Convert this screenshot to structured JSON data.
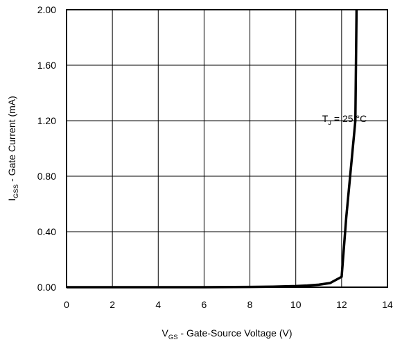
{
  "chart_data": {
    "type": "line",
    "xlabel": {
      "main": "V",
      "sub": "GS",
      "rest": " - Gate-Source Voltage (V)"
    },
    "ylabel": {
      "main": "I",
      "sub": "GSS",
      "rest": " - Gate Current (mA)"
    },
    "annotation": {
      "main": "T",
      "sub": "J",
      "rest": " = 25 °C",
      "x": 11.15,
      "y": 1.2
    },
    "xlim": [
      0,
      14
    ],
    "ylim": [
      0,
      2.0
    ],
    "x_ticks": [
      0,
      2,
      4,
      6,
      8,
      10,
      12,
      14
    ],
    "x_tick_labels": [
      "0",
      "2",
      "4",
      "6",
      "8",
      "10",
      "12",
      "14"
    ],
    "y_ticks": [
      0,
      0.4,
      0.8,
      1.2,
      1.6,
      2.0
    ],
    "y_tick_labels": [
      "0.00",
      "0.40",
      "0.80",
      "1.20",
      "1.60",
      "2.00"
    ],
    "grid": true,
    "series": [
      {
        "x": [
          0,
          2,
          4,
          6,
          8,
          9,
          10,
          10.5,
          11,
          11.5,
          12,
          12.2,
          12.4,
          12.6,
          12.65
        ],
        "y": [
          0.0,
          0.0,
          0.0,
          0.0,
          0.002,
          0.004,
          0.008,
          0.012,
          0.018,
          0.03,
          0.075,
          0.5,
          0.85,
          1.2,
          2.0
        ],
        "color": "#000000"
      }
    ]
  }
}
